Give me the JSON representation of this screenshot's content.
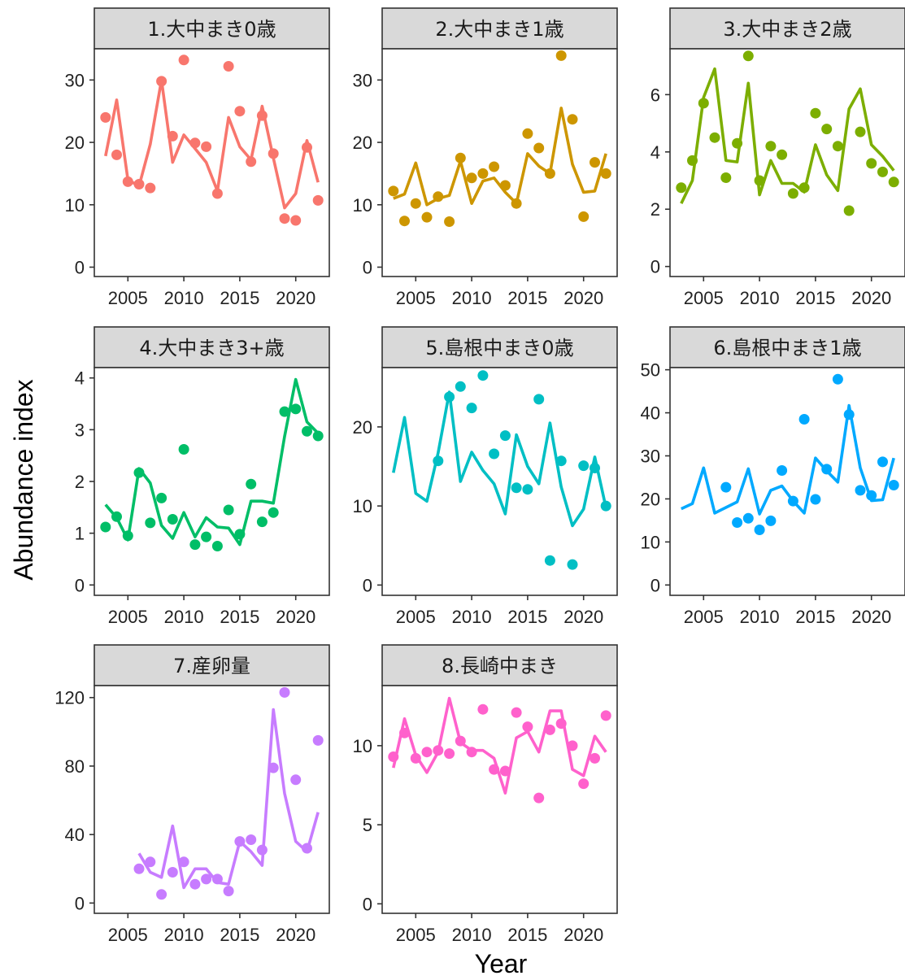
{
  "figure": {
    "xlabel": "Year",
    "ylabel": "Abundance index"
  },
  "chart_data": [
    {
      "type": "line+scatter",
      "title": "1.大中まき0歳",
      "color": "#F8766D",
      "xlim": [
        2002,
        2023
      ],
      "ylim": [
        -1.5,
        35
      ],
      "x_ticks": [
        2005,
        2010,
        2015,
        2020
      ],
      "y_ticks": [
        0,
        10,
        20,
        30
      ],
      "observed": {
        "x": [
          2003,
          2004,
          2005,
          2006,
          2007,
          2008,
          2009,
          2010,
          2011,
          2012,
          2013,
          2014,
          2015,
          2016,
          2017,
          2018,
          2019,
          2020,
          2021,
          2022
        ],
        "y": [
          24.0,
          18.0,
          13.7,
          13.3,
          12.7,
          29.8,
          21.0,
          33.2,
          19.9,
          19.3,
          11.8,
          32.2,
          25.0,
          16.9,
          24.3,
          18.2,
          7.8,
          7.5,
          19.2,
          10.7
        ]
      },
      "fitted": {
        "x": [
          2003,
          2004,
          2005,
          2006,
          2007,
          2008,
          2009,
          2010,
          2011,
          2012,
          2013,
          2014,
          2015,
          2016,
          2017,
          2018,
          2019,
          2020,
          2021,
          2022
        ],
        "y": [
          17.8,
          26.8,
          14.0,
          13.0,
          19.7,
          30.0,
          16.8,
          21.2,
          19.0,
          16.8,
          12.2,
          24.0,
          19.3,
          17.2,
          25.8,
          17.5,
          9.5,
          11.8,
          20.3,
          13.6
        ]
      }
    },
    {
      "type": "line+scatter",
      "title": "2.大中まき1歳",
      "color": "#CD9600",
      "xlim": [
        2002,
        2023
      ],
      "ylim": [
        -1.5,
        35
      ],
      "x_ticks": [
        2005,
        2010,
        2015,
        2020
      ],
      "y_ticks": [
        0,
        10,
        20,
        30
      ],
      "observed": {
        "x": [
          2003,
          2004,
          2005,
          2006,
          2007,
          2008,
          2009,
          2010,
          2011,
          2012,
          2013,
          2014,
          2015,
          2016,
          2017,
          2018,
          2019,
          2020,
          2021,
          2022
        ],
        "y": [
          12.2,
          7.4,
          10.2,
          8.0,
          11.3,
          7.3,
          17.5,
          14.3,
          15.0,
          16.1,
          13.1,
          10.2,
          21.4,
          19.1,
          15.0,
          33.9,
          23.7,
          8.1,
          16.8,
          15.0
        ]
      },
      "fitted": {
        "x": [
          2003,
          2004,
          2005,
          2006,
          2007,
          2008,
          2009,
          2010,
          2011,
          2012,
          2013,
          2014,
          2015,
          2016,
          2017,
          2018,
          2019,
          2020,
          2021,
          2022
        ],
        "y": [
          11.0,
          11.7,
          16.7,
          10.0,
          11.0,
          11.5,
          17.0,
          10.2,
          13.8,
          14.3,
          12.0,
          10.2,
          18.2,
          16.2,
          15.0,
          25.5,
          16.5,
          12.0,
          12.2,
          18.2
        ]
      }
    },
    {
      "type": "line+scatter",
      "title": "3.大中まき2歳",
      "color": "#7CAE00",
      "xlim": [
        2002,
        2023
      ],
      "ylim": [
        -0.35,
        7.6
      ],
      "x_ticks": [
        2005,
        2010,
        2015,
        2020
      ],
      "y_ticks": [
        0,
        2,
        4,
        6
      ],
      "observed": {
        "x": [
          2003,
          2004,
          2005,
          2006,
          2007,
          2008,
          2009,
          2010,
          2011,
          2012,
          2013,
          2014,
          2015,
          2016,
          2017,
          2018,
          2019,
          2020,
          2021,
          2022
        ],
        "y": [
          2.75,
          3.7,
          5.7,
          4.5,
          3.1,
          4.3,
          7.35,
          3.0,
          4.2,
          3.9,
          2.55,
          2.75,
          5.35,
          4.8,
          4.2,
          1.95,
          4.7,
          3.6,
          3.3,
          2.95
        ]
      },
      "fitted": {
        "x": [
          2003,
          2004,
          2005,
          2006,
          2007,
          2008,
          2009,
          2010,
          2011,
          2012,
          2013,
          2014,
          2015,
          2016,
          2017,
          2018,
          2019,
          2020,
          2021,
          2022
        ],
        "y": [
          2.2,
          3.0,
          5.9,
          6.9,
          3.7,
          3.65,
          6.4,
          2.5,
          3.7,
          2.9,
          2.9,
          2.6,
          4.25,
          3.2,
          2.65,
          5.5,
          6.2,
          4.25,
          3.85,
          3.35
        ]
      }
    },
    {
      "type": "line+scatter",
      "title": "4.大中まき3+歳",
      "color": "#00BE67",
      "xlim": [
        2002,
        2023
      ],
      "ylim": [
        -0.2,
        4.2
      ],
      "x_ticks": [
        2005,
        2010,
        2015,
        2020
      ],
      "y_ticks": [
        0,
        1,
        2,
        3,
        4
      ],
      "observed": {
        "x": [
          2003,
          2004,
          2005,
          2006,
          2007,
          2008,
          2009,
          2010,
          2011,
          2012,
          2013,
          2014,
          2015,
          2016,
          2017,
          2018,
          2019,
          2020,
          2021,
          2022
        ],
        "y": [
          1.12,
          1.32,
          0.95,
          2.17,
          1.2,
          1.68,
          1.27,
          2.62,
          0.78,
          0.93,
          0.75,
          1.45,
          0.98,
          1.95,
          1.22,
          1.4,
          3.35,
          3.4,
          2.97,
          2.88
        ]
      },
      "fitted": {
        "x": [
          2003,
          2004,
          2005,
          2006,
          2007,
          2008,
          2009,
          2010,
          2011,
          2012,
          2013,
          2014,
          2015,
          2016,
          2017,
          2018,
          2019,
          2020,
          2021,
          2022
        ],
        "y": [
          1.55,
          1.3,
          0.87,
          2.25,
          1.97,
          1.15,
          0.9,
          1.4,
          0.93,
          1.3,
          1.12,
          1.1,
          0.78,
          1.62,
          1.62,
          1.58,
          2.87,
          3.97,
          3.15,
          2.93
        ]
      }
    },
    {
      "type": "line+scatter",
      "title": "5.島根中まき0歳",
      "color": "#00BFC4",
      "xlim": [
        2002,
        2023
      ],
      "ylim": [
        -1.3,
        27.5
      ],
      "x_ticks": [
        2005,
        2010,
        2015,
        2020
      ],
      "y_ticks": [
        0,
        10,
        20
      ],
      "observed": {
        "x": [
          2007,
          2008,
          2009,
          2010,
          2011,
          2012,
          2013,
          2014,
          2015,
          2016,
          2017,
          2018,
          2019,
          2020,
          2021,
          2022
        ],
        "y": [
          15.7,
          23.8,
          25.1,
          22.4,
          26.5,
          16.6,
          18.9,
          12.3,
          12.1,
          23.5,
          3.1,
          15.7,
          2.6,
          15.1,
          14.8,
          10.0
        ]
      },
      "fitted": {
        "x": [
          2003,
          2004,
          2005,
          2006,
          2007,
          2008,
          2009,
          2010,
          2011,
          2012,
          2013,
          2014,
          2015,
          2016,
          2017,
          2018,
          2019,
          2020,
          2021,
          2022
        ],
        "y": [
          14.2,
          21.2,
          11.6,
          10.6,
          16.7,
          24.4,
          13.1,
          16.8,
          14.5,
          12.8,
          9.0,
          19.0,
          15.0,
          12.8,
          20.5,
          12.4,
          7.5,
          9.6,
          16.2,
          9.8
        ]
      }
    },
    {
      "type": "line+scatter",
      "title": "6.島根中まき1歳",
      "color": "#00A9FF",
      "xlim": [
        2002,
        2023
      ],
      "ylim": [
        -2.4,
        50.5
      ],
      "x_ticks": [
        2005,
        2010,
        2015,
        2020
      ],
      "y_ticks": [
        0,
        10,
        20,
        30,
        40,
        50
      ],
      "observed": {
        "x": [
          2007,
          2008,
          2009,
          2010,
          2011,
          2012,
          2013,
          2014,
          2015,
          2016,
          2017,
          2018,
          2019,
          2020,
          2021,
          2022
        ],
        "y": [
          22.7,
          14.5,
          15.5,
          12.8,
          14.9,
          26.6,
          19.5,
          38.5,
          19.9,
          26.9,
          47.8,
          39.6,
          22.0,
          20.8,
          28.6,
          23.2
        ]
      },
      "fitted": {
        "x": [
          2003,
          2004,
          2005,
          2006,
          2007,
          2008,
          2009,
          2010,
          2011,
          2012,
          2013,
          2014,
          2015,
          2016,
          2017,
          2018,
          2019,
          2020,
          2021,
          2022
        ],
        "y": [
          17.7,
          18.9,
          27.2,
          16.7,
          18.0,
          19.3,
          27.0,
          16.5,
          22.0,
          23.0,
          19.5,
          16.7,
          29.5,
          26.5,
          23.9,
          41.7,
          27.2,
          19.6,
          19.8,
          29.5
        ]
      }
    },
    {
      "type": "line+scatter",
      "title": "7.産卵量",
      "color": "#C77CFF",
      "xlim": [
        2002,
        2023
      ],
      "ylim": [
        -6,
        127
      ],
      "x_ticks": [
        2005,
        2010,
        2015,
        2020
      ],
      "y_ticks": [
        0,
        40,
        80,
        120
      ],
      "observed": {
        "x": [
          2006,
          2007,
          2008,
          2009,
          2010,
          2011,
          2012,
          2013,
          2014,
          2015,
          2016,
          2017,
          2018,
          2019,
          2020,
          2021,
          2022
        ],
        "y": [
          20,
          24,
          5,
          18,
          24,
          11,
          14,
          14,
          7,
          36,
          37,
          31,
          79,
          123,
          72,
          32,
          95
        ]
      },
      "fitted": {
        "x": [
          2006,
          2007,
          2008,
          2009,
          2010,
          2011,
          2012,
          2013,
          2014,
          2015,
          2016,
          2017,
          2018,
          2019,
          2020,
          2021,
          2022
        ],
        "y": [
          29,
          18,
          15,
          45,
          9,
          20,
          20,
          12,
          11,
          36,
          30,
          22,
          113,
          64,
          36,
          30,
          53
        ]
      }
    },
    {
      "type": "line+scatter",
      "title": "8.長崎中まき",
      "color": "#FF61CC",
      "xlim": [
        2002,
        2023
      ],
      "ylim": [
        -0.6,
        13.8
      ],
      "x_ticks": [
        2005,
        2010,
        2015,
        2020
      ],
      "y_ticks": [
        0,
        5,
        10
      ],
      "observed": {
        "x": [
          2003,
          2004,
          2005,
          2006,
          2007,
          2008,
          2009,
          2010,
          2011,
          2012,
          2013,
          2014,
          2015,
          2016,
          2017,
          2018,
          2019,
          2020,
          2021,
          2022
        ],
        "y": [
          9.3,
          10.8,
          9.2,
          9.6,
          9.7,
          9.5,
          10.3,
          9.6,
          12.3,
          8.5,
          8.4,
          12.1,
          11.2,
          6.7,
          11.0,
          11.4,
          10.0,
          7.6,
          9.2,
          11.9
        ]
      },
      "fitted": {
        "x": [
          2003,
          2004,
          2005,
          2006,
          2007,
          2008,
          2009,
          2010,
          2011,
          2012,
          2013,
          2014,
          2015,
          2016,
          2017,
          2018,
          2019,
          2020,
          2021,
          2022
        ],
        "y": [
          8.6,
          11.7,
          9.4,
          8.3,
          9.6,
          13.0,
          10.2,
          9.7,
          9.7,
          9.2,
          7.0,
          10.5,
          10.9,
          9.6,
          12.2,
          12.2,
          8.5,
          8.1,
          10.6,
          9.6
        ]
      }
    }
  ]
}
